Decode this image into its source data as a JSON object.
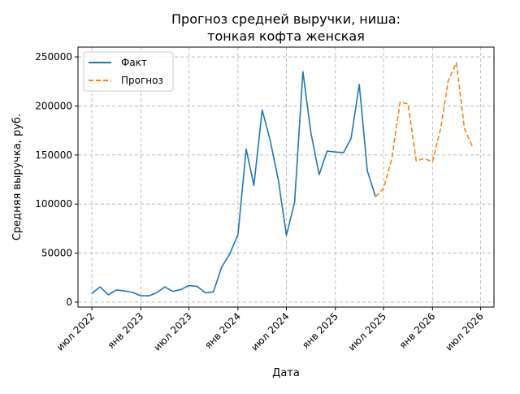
{
  "chart_data": {
    "type": "line",
    "title_lines": [
      "Прогноз средней выручки, ниша:",
      "тонкая кофта женская"
    ],
    "xlabel": "Дата",
    "ylabel": "Средняя выручка, руб.",
    "x_unit": "month",
    "xlim": [
      "2022-05-10",
      "2026-08-20"
    ],
    "ylim": [
      -5000,
      260000
    ],
    "y_ticks": [
      0,
      50000,
      100000,
      150000,
      200000,
      250000
    ],
    "x_ticks": [
      {
        "date": "2022-07-01",
        "label": "июл 2022"
      },
      {
        "date": "2023-01-01",
        "label": "янв 2023"
      },
      {
        "date": "2023-07-01",
        "label": "июл 2023"
      },
      {
        "date": "2024-01-01",
        "label": "янв 2024"
      },
      {
        "date": "2024-07-01",
        "label": "июл 2024"
      },
      {
        "date": "2025-01-01",
        "label": "янв 2025"
      },
      {
        "date": "2025-07-01",
        "label": "июл 2025"
      },
      {
        "date": "2026-01-01",
        "label": "янв 2026"
      },
      {
        "date": "2026-07-01",
        "label": "июл 2026"
      }
    ],
    "grid": true,
    "legend_position": "top-left",
    "series": [
      {
        "name": "Факт",
        "color": "#1f77b4",
        "style": "solid",
        "points": [
          {
            "x": "2022-07-01",
            "y": 9000
          },
          {
            "x": "2022-08-01",
            "y": 15500
          },
          {
            "x": "2022-09-01",
            "y": 7500
          },
          {
            "x": "2022-10-01",
            "y": 12500
          },
          {
            "x": "2022-11-01",
            "y": 11500
          },
          {
            "x": "2022-12-01",
            "y": 10000
          },
          {
            "x": "2023-01-01",
            "y": 6500
          },
          {
            "x": "2023-02-01",
            "y": 6500
          },
          {
            "x": "2023-03-01",
            "y": 9500
          },
          {
            "x": "2023-04-01",
            "y": 15500
          },
          {
            "x": "2023-05-01",
            "y": 11000
          },
          {
            "x": "2023-06-01",
            "y": 13000
          },
          {
            "x": "2023-07-01",
            "y": 17000
          },
          {
            "x": "2023-08-01",
            "y": 16000
          },
          {
            "x": "2023-09-01",
            "y": 9500
          },
          {
            "x": "2023-10-01",
            "y": 10500
          },
          {
            "x": "2023-11-01",
            "y": 36000
          },
          {
            "x": "2023-12-01",
            "y": 49000
          },
          {
            "x": "2024-01-01",
            "y": 69000
          },
          {
            "x": "2024-02-01",
            "y": 156000
          },
          {
            "x": "2024-03-01",
            "y": 119000
          },
          {
            "x": "2024-04-01",
            "y": 196000
          },
          {
            "x": "2024-05-01",
            "y": 165000
          },
          {
            "x": "2024-06-01",
            "y": 124000
          },
          {
            "x": "2024-07-01",
            "y": 68000
          },
          {
            "x": "2024-08-01",
            "y": 102000
          },
          {
            "x": "2024-09-01",
            "y": 235000
          },
          {
            "x": "2024-10-01",
            "y": 173000
          },
          {
            "x": "2024-11-01",
            "y": 130000
          },
          {
            "x": "2024-12-01",
            "y": 154000
          },
          {
            "x": "2025-01-01",
            "y": 153000
          },
          {
            "x": "2025-02-01",
            "y": 152500
          },
          {
            "x": "2025-03-01",
            "y": 167000
          },
          {
            "x": "2025-04-01",
            "y": 222000
          },
          {
            "x": "2025-05-01",
            "y": 134000
          },
          {
            "x": "2025-06-01",
            "y": 107500
          }
        ]
      },
      {
        "name": "Прогноз",
        "color": "#ff7f0e",
        "style": "dashed",
        "points": [
          {
            "x": "2025-06-01",
            "y": 107500
          },
          {
            "x": "2025-07-01",
            "y": 116000
          },
          {
            "x": "2025-08-01",
            "y": 146000
          },
          {
            "x": "2025-09-01",
            "y": 204000
          },
          {
            "x": "2025-10-01",
            "y": 202000
          },
          {
            "x": "2025-11-01",
            "y": 144000
          },
          {
            "x": "2025-12-01",
            "y": 146500
          },
          {
            "x": "2026-01-01",
            "y": 143000
          },
          {
            "x": "2026-02-01",
            "y": 178000
          },
          {
            "x": "2026-03-01",
            "y": 226000
          },
          {
            "x": "2026-04-01",
            "y": 244000
          },
          {
            "x": "2026-05-01",
            "y": 177000
          },
          {
            "x": "2026-06-01",
            "y": 158000
          }
        ]
      }
    ]
  }
}
